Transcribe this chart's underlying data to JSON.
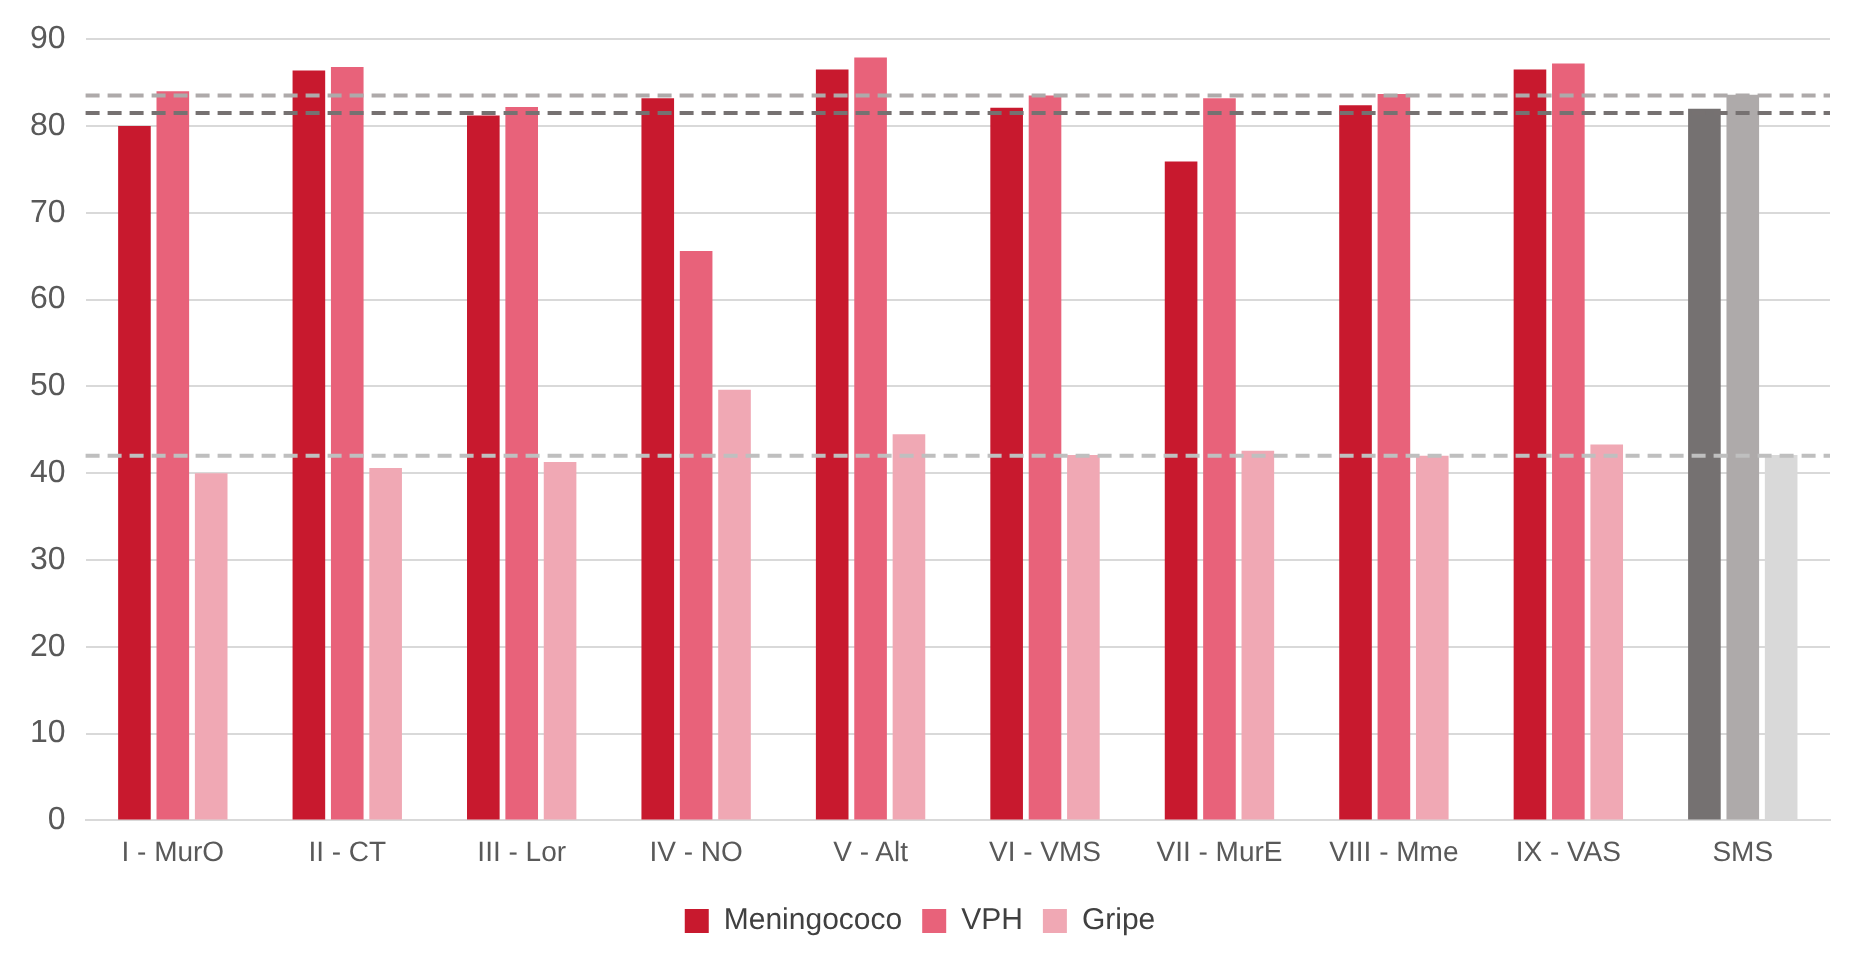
{
  "chart_data": {
    "type": "bar",
    "categories": [
      "I - MurO",
      "II - CT",
      "III - Lor",
      "IV - NO",
      "V - Alt",
      "VI - VMS",
      "VII - MurE",
      "VIII - Mme",
      "IX - VAS",
      "SMS"
    ],
    "series": [
      {
        "name": "Meningococo",
        "color": "#c8192e",
        "colors": [
          "#c8192e",
          "#c8192e",
          "#c8192e",
          "#c8192e",
          "#c8192e",
          "#c8192e",
          "#c8192e",
          "#c8192e",
          "#c8192e",
          "#757171"
        ],
        "values": [
          80.0,
          86.4,
          81.2,
          83.2,
          86.5,
          82.1,
          75.9,
          82.4,
          86.5,
          82.0
        ]
      },
      {
        "name": "VPH",
        "color": "#e8627a",
        "colors": [
          "#e8627a",
          "#e8627a",
          "#e8627a",
          "#e8627a",
          "#e8627a",
          "#e8627a",
          "#e8627a",
          "#e8627a",
          "#e8627a",
          "#aeaaaa"
        ],
        "values": [
          84.0,
          86.8,
          82.2,
          65.6,
          87.9,
          83.5,
          83.2,
          83.7,
          87.2,
          83.6
        ]
      },
      {
        "name": "Gripe",
        "color": "#f0a8b4",
        "colors": [
          "#f0a8b4",
          "#f0a8b4",
          "#f0a8b4",
          "#f0a8b4",
          "#f0a8b4",
          "#f0a8b4",
          "#f0a8b4",
          "#f0a8b4",
          "#f0a8b4",
          "#d9d9d9"
        ],
        "values": [
          40.0,
          40.6,
          41.3,
          49.6,
          44.5,
          42.1,
          42.6,
          42.0,
          43.3,
          42.1
        ]
      }
    ],
    "ylim": [
      0,
      90
    ],
    "yticks": [
      0,
      10,
      20,
      30,
      40,
      50,
      60,
      70,
      80,
      90
    ],
    "ref_lines": [
      {
        "axis": "y",
        "value": 83.5,
        "color": "#aeaaaa",
        "line_style": "dashed"
      },
      {
        "axis": "y",
        "value": 81.5,
        "color": "#767171",
        "line_style": "dashed"
      },
      {
        "axis": "y",
        "value": 42.0,
        "color": "#bfbfbf",
        "line_style": "dashed"
      }
    ],
    "grid": "y",
    "legend": "bottom"
  }
}
